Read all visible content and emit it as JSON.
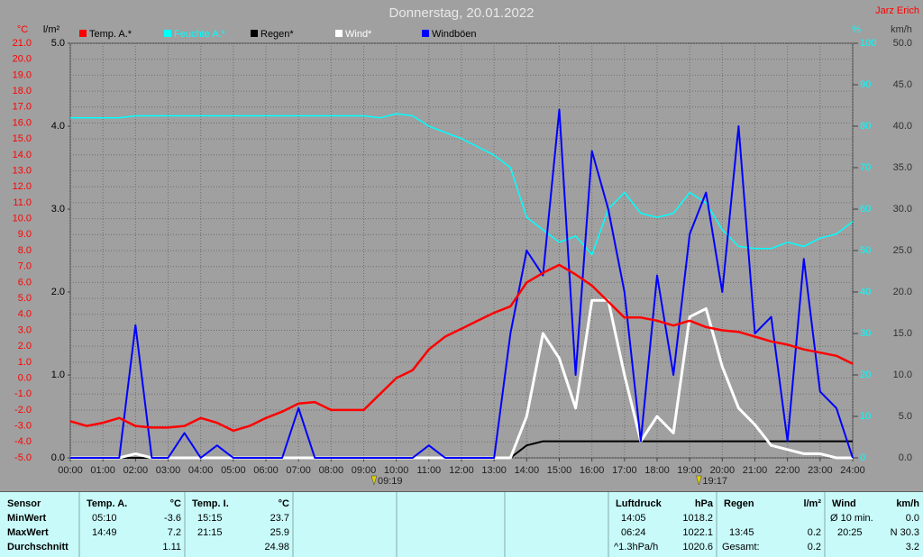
{
  "chart_data": {
    "type": "line",
    "title": "Donnerstag, 20.01.2022",
    "author": "Jarz Erich",
    "x": [
      0,
      0.5,
      1,
      1.5,
      2,
      2.5,
      3,
      3.5,
      4,
      4.5,
      5,
      5.5,
      6,
      6.5,
      7,
      7.5,
      8,
      8.5,
      9,
      9.5,
      10,
      10.5,
      11,
      11.5,
      12,
      12.5,
      13,
      13.5,
      14,
      14.5,
      15,
      15.5,
      16,
      16.5,
      17,
      17.5,
      18,
      18.5,
      19,
      19.5,
      20,
      20.5,
      21,
      21.5,
      22,
      22.5,
      23,
      23.5,
      24
    ],
    "xlim": [
      0,
      24
    ],
    "xticks": [
      {
        "value": 0,
        "label": "00:00"
      },
      {
        "value": 1,
        "label": "01:00"
      },
      {
        "value": 2,
        "label": "02:00"
      },
      {
        "value": 3,
        "label": "03:00"
      },
      {
        "value": 4,
        "label": "04:00"
      },
      {
        "value": 5,
        "label": "05:00"
      },
      {
        "value": 6,
        "label": "06:00"
      },
      {
        "value": 7,
        "label": "07:00"
      },
      {
        "value": 8,
        "label": "08:00"
      },
      {
        "value": 9,
        "label": "09:00"
      },
      {
        "value": 10,
        "label": "10:00"
      },
      {
        "value": 11,
        "label": "11:00"
      },
      {
        "value": 12,
        "label": "12:00"
      },
      {
        "value": 13,
        "label": "13:00"
      },
      {
        "value": 14,
        "label": "14:00"
      },
      {
        "value": 15,
        "label": "15:00"
      },
      {
        "value": 16,
        "label": "16:00"
      },
      {
        "value": 17,
        "label": "17:00"
      },
      {
        "value": 18,
        "label": "18:00"
      },
      {
        "value": 19,
        "label": "19:00"
      },
      {
        "value": 20,
        "label": "20:00"
      },
      {
        "value": 21,
        "label": "21:00"
      },
      {
        "value": 22,
        "label": "22:00"
      },
      {
        "value": 23,
        "label": "23:00"
      },
      {
        "value": 24,
        "label": "24:00"
      }
    ],
    "grid": true,
    "axes": [
      {
        "unit": "°C",
        "color": "#ff0000",
        "lim": [
          -5,
          21
        ],
        "ticks": [
          {
            "value": -5,
            "label": "-5.0"
          },
          {
            "value": -4,
            "label": "-4.0"
          },
          {
            "value": -3,
            "label": "-3.0"
          },
          {
            "value": -2,
            "label": "-2.0"
          },
          {
            "value": -1,
            "label": "-1.0"
          },
          {
            "value": 0,
            "label": "0.0"
          },
          {
            "value": 1,
            "label": "1.0"
          },
          {
            "value": 2,
            "label": "2.0"
          },
          {
            "value": 3,
            "label": "3.0"
          },
          {
            "value": 4,
            "label": "4.0"
          },
          {
            "value": 5,
            "label": "5.0"
          },
          {
            "value": 6,
            "label": "6.0"
          },
          {
            "value": 7,
            "label": "7.0"
          },
          {
            "value": 8,
            "label": "8.0"
          },
          {
            "value": 9,
            "label": "9.0"
          },
          {
            "value": 10,
            "label": "10.0"
          },
          {
            "value": 11,
            "label": "11.0"
          },
          {
            "value": 12,
            "label": "12.0"
          },
          {
            "value": 13,
            "label": "13.0"
          },
          {
            "value": 14,
            "label": "14.0"
          },
          {
            "value": 15,
            "label": "15.0"
          },
          {
            "value": 16,
            "label": "16.0"
          },
          {
            "value": 17,
            "label": "17.0"
          },
          {
            "value": 18,
            "label": "18.0"
          },
          {
            "value": 19,
            "label": "19.0"
          },
          {
            "value": 20,
            "label": "20.0"
          },
          {
            "value": 21,
            "label": "21.0"
          }
        ]
      },
      {
        "unit": "l/m²",
        "color": "#000000",
        "lim": [
          0,
          5
        ],
        "ticks": [
          {
            "value": 0,
            "label": "0.0"
          },
          {
            "value": 1,
            "label": "1.0"
          },
          {
            "value": 2,
            "label": "2.0"
          },
          {
            "value": 3,
            "label": "3.0"
          },
          {
            "value": 4,
            "label": "4.0"
          },
          {
            "value": 5,
            "label": "5.0"
          }
        ]
      },
      {
        "unit": "%",
        "color": "#00ffff",
        "lim": [
          0,
          100
        ],
        "ticks": [
          0,
          10,
          20,
          30,
          40,
          50,
          60,
          70,
          80,
          90,
          100
        ]
      },
      {
        "unit": "km/h",
        "color": "#303030",
        "lim": [
          0,
          50
        ],
        "ticks": [
          {
            "value": 0,
            "label": "0.0"
          },
          {
            "value": 5,
            "label": "5.0"
          },
          {
            "value": 10,
            "label": "10.0"
          },
          {
            "value": 15,
            "label": "15.0"
          },
          {
            "value": 20,
            "label": "20.0"
          },
          {
            "value": 25,
            "label": "25.0"
          },
          {
            "value": 30,
            "label": "30.0"
          },
          {
            "value": 35,
            "label": "35.0"
          },
          {
            "value": 40,
            "label": "40.0"
          },
          {
            "value": 45,
            "label": "45.0"
          },
          {
            "value": 50,
            "label": "50.0"
          }
        ]
      }
    ],
    "series": [
      {
        "name": "Temp. A.*",
        "color": "#ff0000",
        "axis": 0,
        "values": [
          -2.7,
          -3.0,
          -2.8,
          -2.5,
          -3.0,
          -3.1,
          -3.1,
          -3.0,
          -2.5,
          -2.8,
          -3.3,
          -3.0,
          -2.5,
          -2.1,
          -1.6,
          -1.5,
          -2.0,
          -2.0,
          -2.0,
          -1.0,
          0.0,
          0.5,
          1.8,
          2.6,
          3.1,
          3.6,
          4.1,
          4.5,
          6.0,
          6.6,
          7.1,
          6.5,
          5.8,
          4.8,
          3.8,
          3.8,
          3.6,
          3.3,
          3.6,
          3.2,
          3.0,
          2.9,
          2.6,
          2.3,
          2.1,
          1.8,
          1.6,
          1.4,
          0.9
        ]
      },
      {
        "name": "Feuchte A.*",
        "color": "#00ffff",
        "axis": 2,
        "values": [
          82,
          82,
          82,
          82,
          82.5,
          82.5,
          82.5,
          82.5,
          82.5,
          82.5,
          82.5,
          82.5,
          82.5,
          82.5,
          82.5,
          82.5,
          82.5,
          82.5,
          82.5,
          82,
          83,
          82.5,
          80,
          78.5,
          77,
          75,
          73,
          70,
          58,
          55,
          52,
          53.5,
          49,
          60,
          64,
          59,
          58,
          59,
          64,
          61.5,
          55,
          51,
          50.5,
          50.5,
          52,
          51,
          53,
          54,
          57
        ]
      },
      {
        "name": "Regen*",
        "color": "#000000",
        "axis": 1,
        "values": [
          0,
          0,
          0,
          0,
          0,
          0,
          0,
          0,
          0,
          0,
          0,
          0,
          0,
          0,
          0,
          0,
          0,
          0,
          0,
          0,
          0,
          0,
          0,
          0,
          0,
          0,
          0,
          0,
          0.15,
          0.2,
          0.2,
          0.2,
          0.2,
          0.2,
          0.2,
          0.2,
          0.2,
          0.2,
          0.2,
          0.2,
          0.2,
          0.2,
          0.2,
          0.2,
          0.2,
          0.2,
          0.2,
          0.2,
          0.2
        ]
      },
      {
        "name": "Wind*",
        "color": "#ffffff",
        "axis": 3,
        "values": [
          0,
          0,
          0,
          0,
          0.5,
          0,
          0,
          0,
          0,
          0,
          0,
          0,
          0,
          0,
          0,
          0,
          0,
          0,
          0,
          0,
          0,
          0,
          0,
          0,
          0,
          0,
          0,
          0,
          5,
          15,
          12,
          6,
          19,
          19,
          10,
          2,
          5,
          3,
          17,
          18,
          11,
          6,
          4,
          1.5,
          1,
          0.5,
          0.5,
          0,
          0
        ]
      },
      {
        "name": "Windböen",
        "color": "#0000ff",
        "axis": 3,
        "values": [
          0,
          0,
          0,
          0,
          16,
          0,
          0,
          3,
          0,
          1.5,
          0,
          0,
          0,
          0,
          6,
          0,
          0,
          0,
          0,
          0,
          0,
          0,
          1.5,
          0,
          0,
          0,
          0,
          15,
          25,
          22,
          42,
          10,
          37,
          30,
          20,
          2,
          22,
          10,
          27,
          32,
          20,
          40,
          15,
          17,
          2,
          24,
          8,
          6,
          0
        ]
      }
    ],
    "annotations": [
      {
        "x": 9.3167,
        "label": "09:19"
      },
      {
        "x": 19.2833,
        "label": "19:17"
      }
    ]
  },
  "table": {
    "title": "Sensor",
    "row_labels": [
      "MinWert",
      "MaxWert",
      "Durchschnitt"
    ],
    "groups": [
      {
        "title": "Temp. A.",
        "unit": "°C",
        "rows": [
          {
            "time": "05:10",
            "value": "-3.6"
          },
          {
            "time": "14:49",
            "value": "7.2"
          },
          {
            "value": "1.11"
          }
        ]
      },
      {
        "title": "Temp. I.",
        "unit": "°C",
        "rows": [
          {
            "time": "15:15",
            "value": "23.7"
          },
          {
            "time": "21:15",
            "value": "25.9"
          },
          {
            "value": "24.98"
          }
        ]
      },
      {
        "title": "Luftdruck",
        "unit": "hPa",
        "rows": [
          {
            "time": "14:05",
            "value": "1018.2"
          },
          {
            "time": "06:24",
            "value": "1022.1"
          },
          {
            "time": "^1.3hPa/h",
            "value": "1020.6"
          }
        ]
      },
      {
        "title": "Regen",
        "unit": "l/m²",
        "rows": [
          {},
          {
            "time": "13:45",
            "value": "0.2"
          },
          {
            "time": "Gesamt:",
            "value": "0.2"
          }
        ]
      },
      {
        "title": "Wind",
        "unit": "km/h",
        "rows": [
          {
            "time": "Ø 10 min.",
            "value": "0.0"
          },
          {
            "time": "20:25",
            "value": "N 30.3"
          },
          {
            "value": "3.2"
          }
        ]
      }
    ]
  }
}
